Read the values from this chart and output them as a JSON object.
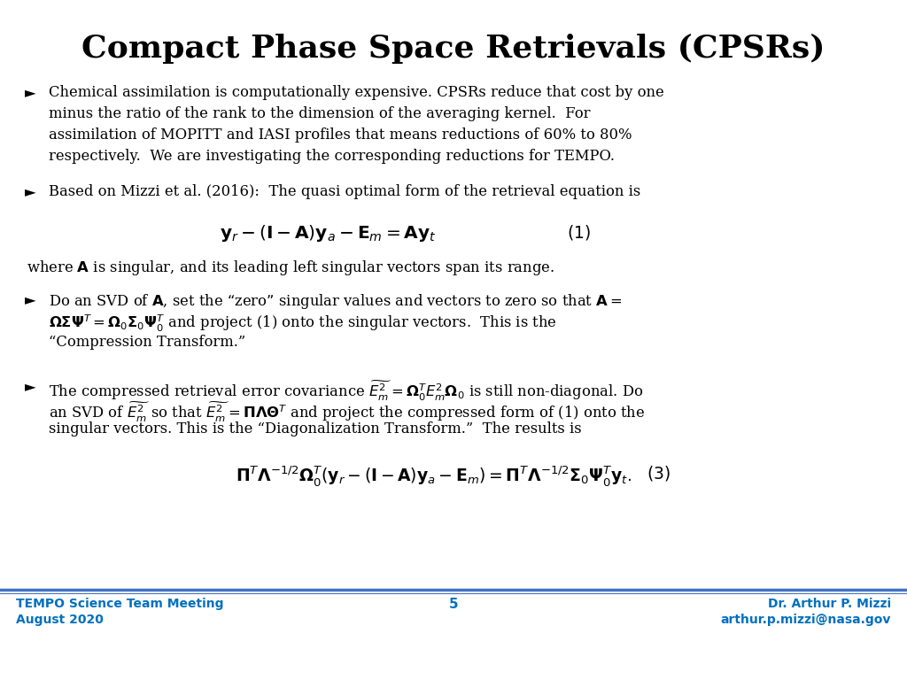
{
  "title": "Compact Phase Space Retrievals (CPSRs)",
  "title_fontsize": 26,
  "background_color": "#ffffff",
  "footer_line_color": "#4472C4",
  "footer_text_color": "#0070C0",
  "footer_left": "TEMPO Science Team Meeting\nAugust 2020",
  "footer_center": "5",
  "footer_right": "Dr. Arthur P. Mizzi\narthur.p.mizzi@nasa.gov",
  "text_color": "#000000",
  "body_fontsize": 11.8,
  "eq_fontsize": 13.5
}
